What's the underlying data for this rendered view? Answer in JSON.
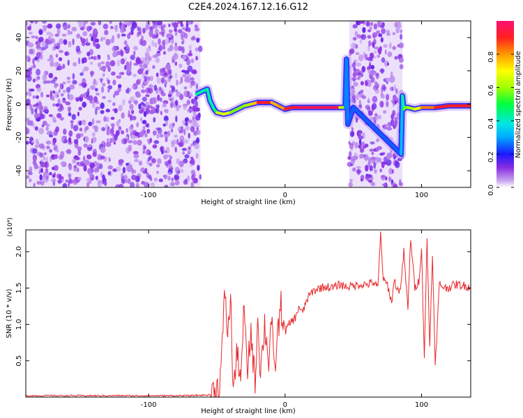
{
  "title": "C2E4.2024.167.12.16.G12",
  "chart_data": [
    {
      "type": "heatmap",
      "xlabel": "Height of straight line (km)",
      "ylabel": "Frequency (Hz)",
      "xlim": [
        -190,
        136
      ],
      "ylim": [
        -50,
        50
      ],
      "xticks": [
        -100,
        0,
        100
      ],
      "yticks": [
        -40,
        -20,
        0,
        20,
        40
      ],
      "colorbar": {
        "label": "Normalized spectral amplitude",
        "range": [
          0,
          1
        ],
        "ticks": [
          "0.0",
          "0.2",
          "0.4",
          "0.6",
          "0.8"
        ]
      },
      "noise_regions": [
        {
          "x_start": -190,
          "x_end": -62
        },
        {
          "x_start": 47,
          "x_end": 86
        }
      ],
      "signal_trace": {
        "x": [
          -65,
          -60,
          -57,
          -55,
          -52,
          -50,
          -45,
          -40,
          -35,
          -30,
          -25,
          -20,
          -15,
          -10,
          -5,
          0,
          5,
          10,
          20,
          30,
          40,
          44,
          45,
          46,
          50,
          85,
          86,
          87,
          88,
          90,
          95,
          100,
          110,
          120,
          136
        ],
        "y": [
          6,
          8,
          9,
          2,
          -3,
          -5,
          -6,
          -5,
          -3,
          -1,
          0,
          1,
          1,
          1,
          -1,
          -3,
          -2,
          -2,
          -2,
          -2,
          -2,
          -2,
          27,
          -12,
          -2,
          -30,
          5,
          -3,
          -2,
          -2,
          -3,
          -2,
          -2,
          -1,
          -1
        ],
        "amplitude": [
          0.4,
          0.45,
          0.4,
          0.45,
          0.4,
          0.55,
          0.75,
          0.6,
          0.55,
          0.6,
          0.6,
          0.9,
          0.95,
          0.85,
          0.7,
          0.9,
          0.9,
          0.95,
          0.95,
          0.95,
          0.95,
          0.3,
          0.25,
          0.3,
          0.2,
          0.3,
          0.35,
          0.5,
          0.6,
          0.55,
          0.65,
          0.75,
          0.9,
          0.9,
          0.9
        ]
      }
    },
    {
      "type": "line",
      "xlabel": "Height of straight line (km)",
      "ylabel": "SNR (10 * v/v)",
      "y_multiplier": "(x10⁴)",
      "xlim": [
        -190,
        136
      ],
      "ylim": [
        0,
        2.3
      ],
      "xticks": [
        -100,
        0,
        100
      ],
      "yticks": [
        0.5,
        1.0,
        1.5,
        2.0
      ],
      "ytick_labels": [
        "0.5",
        "1.0",
        "1.5",
        "2.0"
      ],
      "series": [
        {
          "color": "#e8262a",
          "x": [
            -190,
            -170,
            -150,
            -130,
            -110,
            -90,
            -70,
            -55,
            -48,
            -46,
            -44,
            -42,
            -40,
            -38,
            -35,
            -32,
            -30,
            -28,
            -25,
            -22,
            -20,
            -18,
            -15,
            -12,
            -10,
            -8,
            -5,
            -3,
            0,
            3,
            5,
            8,
            10,
            13,
            15,
            18,
            20,
            25,
            30,
            35,
            40,
            45,
            50,
            55,
            60,
            65,
            68,
            70,
            72,
            75,
            78,
            80,
            83,
            85,
            87,
            90,
            92,
            95,
            98,
            100,
            102,
            104,
            106,
            108,
            110,
            113,
            118,
            125,
            136
          ],
          "y": [
            0.02,
            0.02,
            0.02,
            0.02,
            0.02,
            0.02,
            0.02,
            0.03,
            0.15,
            0.7,
            1.5,
            0.8,
            1.4,
            0.1,
            0.6,
            0.25,
            1.35,
            0.3,
            0.9,
            0.2,
            1.1,
            0.35,
            1.0,
            0.5,
            1.1,
            0.3,
            0.95,
            1.25,
            0.9,
            1.0,
            1.05,
            1.1,
            1.25,
            1.15,
            1.3,
            1.4,
            1.45,
            1.5,
            1.52,
            1.5,
            1.55,
            1.52,
            1.53,
            1.55,
            1.55,
            1.58,
            1.5,
            2.25,
            1.6,
            1.55,
            1.3,
            1.6,
            1.45,
            1.55,
            2.0,
            1.2,
            2.2,
            1.5,
            1.6,
            2.05,
            0.55,
            2.15,
            0.7,
            2.0,
            0.4,
            1.55,
            1.5,
            1.55,
            1.52
          ]
        }
      ]
    }
  ]
}
